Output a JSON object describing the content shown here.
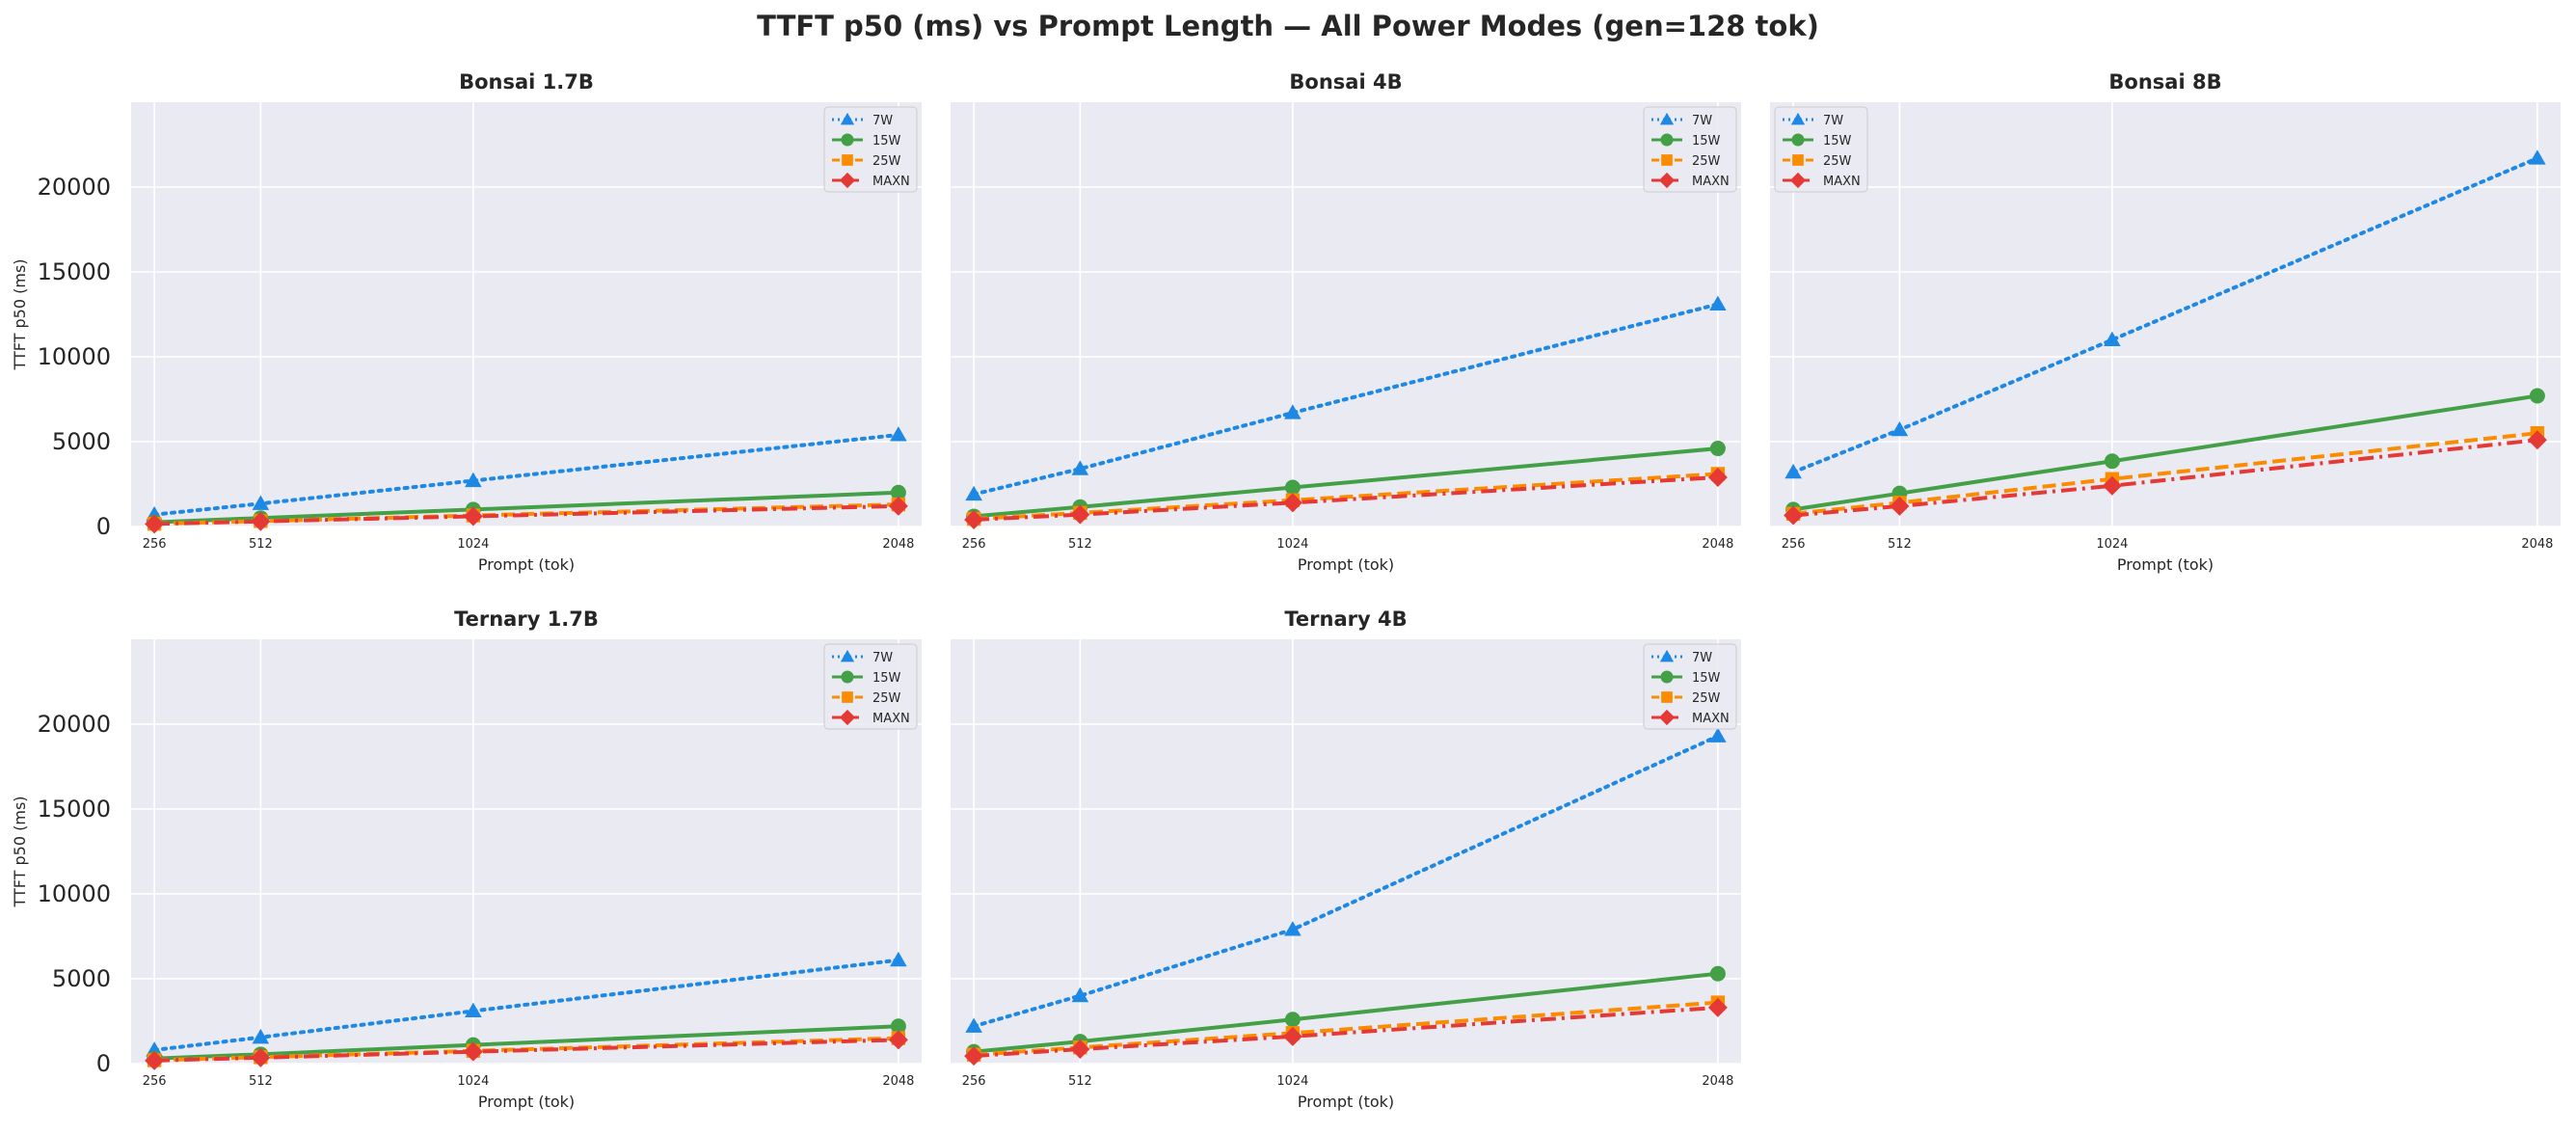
{
  "figure": {
    "title": "TTFT p50 (ms) vs Prompt Length — All Power Modes (gen=128 tok)"
  },
  "series_styles": [
    {
      "name": "7W",
      "color": "#1e88e5",
      "marker": "triangle",
      "dash": "dotted"
    },
    {
      "name": "15W",
      "color": "#43a047",
      "marker": "circle",
      "dash": "solid"
    },
    {
      "name": "25W",
      "color": "#fb8c00",
      "marker": "square",
      "dash": "dashed"
    },
    {
      "name": "MAXN",
      "color": "#e53935",
      "marker": "diamond",
      "dash": "dashdot"
    }
  ],
  "chart_data": [
    {
      "type": "line",
      "title": "Bonsai 1.7B",
      "xlabel": "Prompt (tok)",
      "ylabel": "TTFT p50 (ms)",
      "x": [
        256,
        512,
        1024,
        2048
      ],
      "xticks": [
        "256",
        "512",
        "1024",
        "2048"
      ],
      "yticks": [
        "0",
        "5000",
        "10000",
        "15000",
        "20000"
      ],
      "ylim": [
        0,
        25000
      ],
      "grid": true,
      "legend": "top-right",
      "series": [
        {
          "name": "7W",
          "values": [
            700,
            1350,
            2700,
            5400
          ]
        },
        {
          "name": "15W",
          "values": [
            250,
            500,
            1000,
            2000
          ]
        },
        {
          "name": "25W",
          "values": [
            160,
            320,
            650,
            1300
          ]
        },
        {
          "name": "MAXN",
          "values": [
            150,
            300,
            600,
            1200
          ]
        }
      ]
    },
    {
      "type": "line",
      "title": "Bonsai 4B",
      "xlabel": "Prompt (tok)",
      "ylabel": "",
      "x": [
        256,
        512,
        1024,
        2048
      ],
      "xticks": [
        "256",
        "512",
        "1024",
        "2048"
      ],
      "yticks": [],
      "ylim": [
        0,
        25000
      ],
      "grid": true,
      "legend": "top-right",
      "series": [
        {
          "name": "7W",
          "values": [
            1900,
            3400,
            6700,
            13100
          ]
        },
        {
          "name": "15W",
          "values": [
            600,
            1150,
            2300,
            4600
          ]
        },
        {
          "name": "25W",
          "values": [
            450,
            800,
            1550,
            3100
          ]
        },
        {
          "name": "MAXN",
          "values": [
            400,
            700,
            1400,
            2900
          ]
        }
      ]
    },
    {
      "type": "line",
      "title": "Bonsai 8B",
      "xlabel": "Prompt (tok)",
      "ylabel": "",
      "x": [
        256,
        512,
        1024,
        2048
      ],
      "xticks": [
        "256",
        "512",
        "1024",
        "2048"
      ],
      "yticks": [],
      "ylim": [
        0,
        25000
      ],
      "grid": true,
      "legend": "top-left",
      "series": [
        {
          "name": "7W",
          "values": [
            3200,
            5700,
            11000,
            21700
          ]
        },
        {
          "name": "15W",
          "values": [
            1000,
            1950,
            3850,
            7700
          ]
        },
        {
          "name": "25W",
          "values": [
            750,
            1400,
            2800,
            5500
          ]
        },
        {
          "name": "MAXN",
          "values": [
            650,
            1200,
            2400,
            5100
          ]
        }
      ]
    },
    {
      "type": "line",
      "title": "Ternary 1.7B",
      "xlabel": "Prompt (tok)",
      "ylabel": "TTFT p50 (ms)",
      "x": [
        256,
        512,
        1024,
        2048
      ],
      "xticks": [
        "256",
        "512",
        "1024",
        "2048"
      ],
      "yticks": [
        "0",
        "5000",
        "10000",
        "15000",
        "20000"
      ],
      "ylim": [
        0,
        25000
      ],
      "grid": true,
      "legend": "top-right",
      "series": [
        {
          "name": "7W",
          "values": [
            800,
            1550,
            3100,
            6100
          ]
        },
        {
          "name": "15W",
          "values": [
            300,
            550,
            1100,
            2200
          ]
        },
        {
          "name": "25W",
          "values": [
            200,
            380,
            750,
            1500
          ]
        },
        {
          "name": "MAXN",
          "values": [
            180,
            350,
            700,
            1400
          ]
        }
      ]
    },
    {
      "type": "line",
      "title": "Ternary 4B",
      "xlabel": "Prompt (tok)",
      "ylabel": "",
      "x": [
        256,
        512,
        1024,
        2048
      ],
      "xticks": [
        "256",
        "512",
        "1024",
        "2048"
      ],
      "yticks": [],
      "ylim": [
        0,
        25000
      ],
      "grid": true,
      "legend": "top-right",
      "series": [
        {
          "name": "7W",
          "values": [
            2200,
            4000,
            7900,
            19300
          ]
        },
        {
          "name": "15W",
          "values": [
            700,
            1300,
            2600,
            5300
          ]
        },
        {
          "name": "25W",
          "values": [
            520,
            950,
            1800,
            3600
          ]
        },
        {
          "name": "MAXN",
          "values": [
            450,
            850,
            1600,
            3300
          ]
        }
      ]
    }
  ]
}
